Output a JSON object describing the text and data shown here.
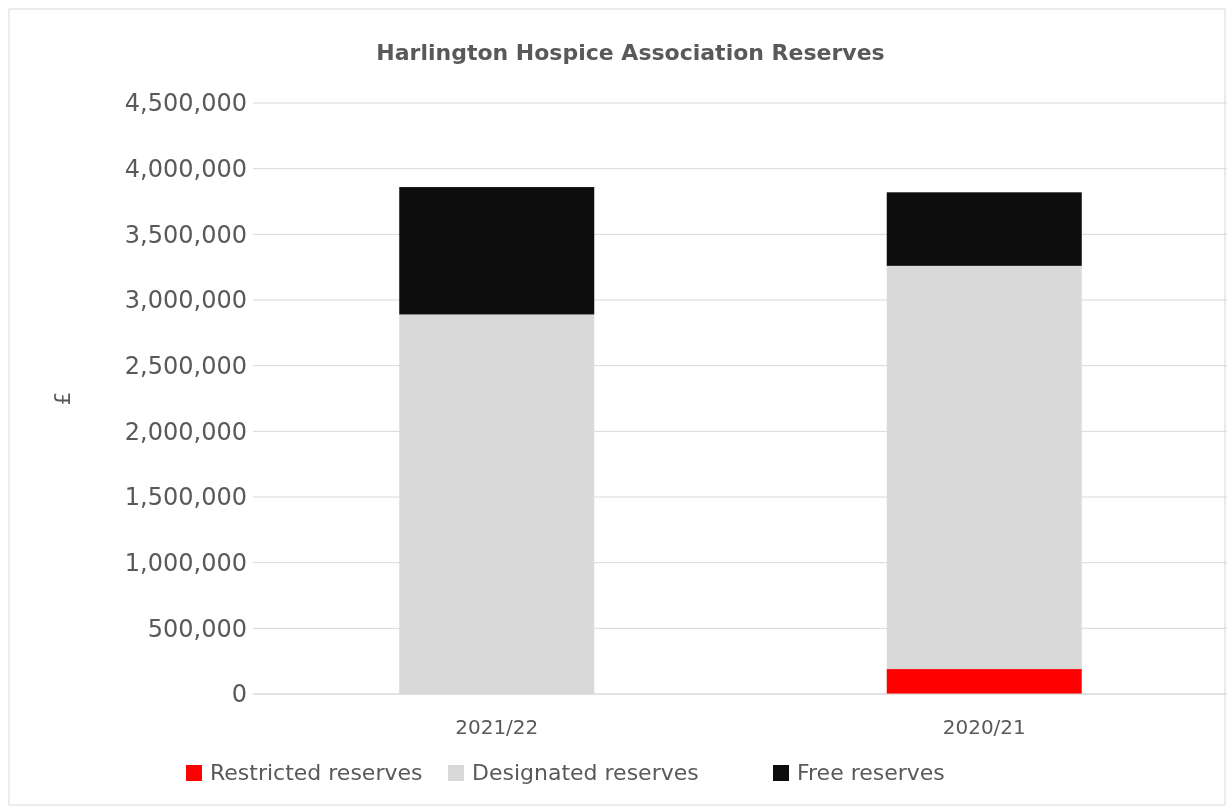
{
  "chart_data": {
    "type": "bar",
    "title": "Harlington Hospice Association Reserves",
    "ylabel": "£",
    "categories": [
      "2021/22",
      "2020/21"
    ],
    "stacked": true,
    "series": [
      {
        "name": "Restricted reserves",
        "color": "#ff0000",
        "values": [
          0,
          190000
        ]
      },
      {
        "name": "Designated reserves",
        "color": "#d9d9d9",
        "values": [
          2890000,
          3070000
        ]
      },
      {
        "name": "Free reserves",
        "color": "#0d0d0d",
        "values": [
          970000,
          560000
        ]
      }
    ],
    "ylim": [
      0,
      4500000
    ],
    "yticks": [
      {
        "value": 0,
        "label": "0"
      },
      {
        "value": 500000,
        "label": "500,000"
      },
      {
        "value": 1000000,
        "label": "1,000,000"
      },
      {
        "value": 1500000,
        "label": "1,500,000"
      },
      {
        "value": 2000000,
        "label": "2,000,000"
      },
      {
        "value": 2500000,
        "label": "2,500,000"
      },
      {
        "value": 3000000,
        "label": "3,000,000"
      },
      {
        "value": 3500000,
        "label": "3,500,000"
      },
      {
        "value": 4000000,
        "label": "4,000,000"
      },
      {
        "value": 4500000,
        "label": "4,500,000"
      }
    ],
    "grid": "y",
    "legend": "bottom"
  }
}
